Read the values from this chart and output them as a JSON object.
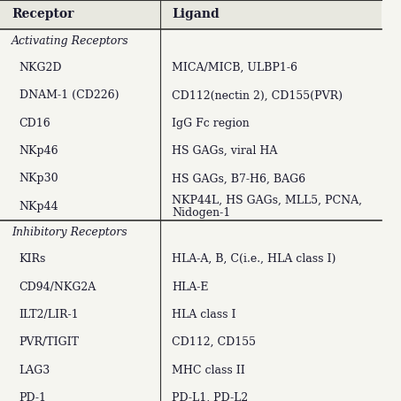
{
  "col1_header": "Receptor",
  "col2_header": "Ligand",
  "activating_label": "Activating Receptors",
  "inhibitory_label": "Inhibitory Receptors",
  "activating_rows": [
    [
      "NKG2D",
      "MICA/MICB, ULBP1-6"
    ],
    [
      "DNAM-1 (CD226)",
      "CD112(nectin 2), CD155(PVR)"
    ],
    [
      "CD16",
      "IgG Fc region"
    ],
    [
      "NKp46",
      "HS GAGs, viral HA"
    ],
    [
      "NKp30",
      "HS GAGs, B7-H6, BAG6"
    ],
    [
      "NKp44",
      "NKP44L, HS GAGs, MLL5, PCNA,\nNidogen-1"
    ]
  ],
  "inhibitory_rows": [
    [
      "KIRs",
      "HLA-A, B, C(i.e., HLA class I)"
    ],
    [
      "CD94/NKG2A",
      "HLA-E"
    ],
    [
      "ILT2/LIR-1",
      "HLA class I"
    ],
    [
      "PVR/TIGIT",
      "CD112, CD155"
    ],
    [
      "LAG3",
      "MHC class II"
    ],
    [
      "PD-1",
      "PD-L1, PD-L2"
    ]
  ],
  "bg_color": "#f5f5f0",
  "text_color": "#1a1a2e",
  "line_color": "#333333",
  "font_size": 9,
  "header_font_size": 10
}
